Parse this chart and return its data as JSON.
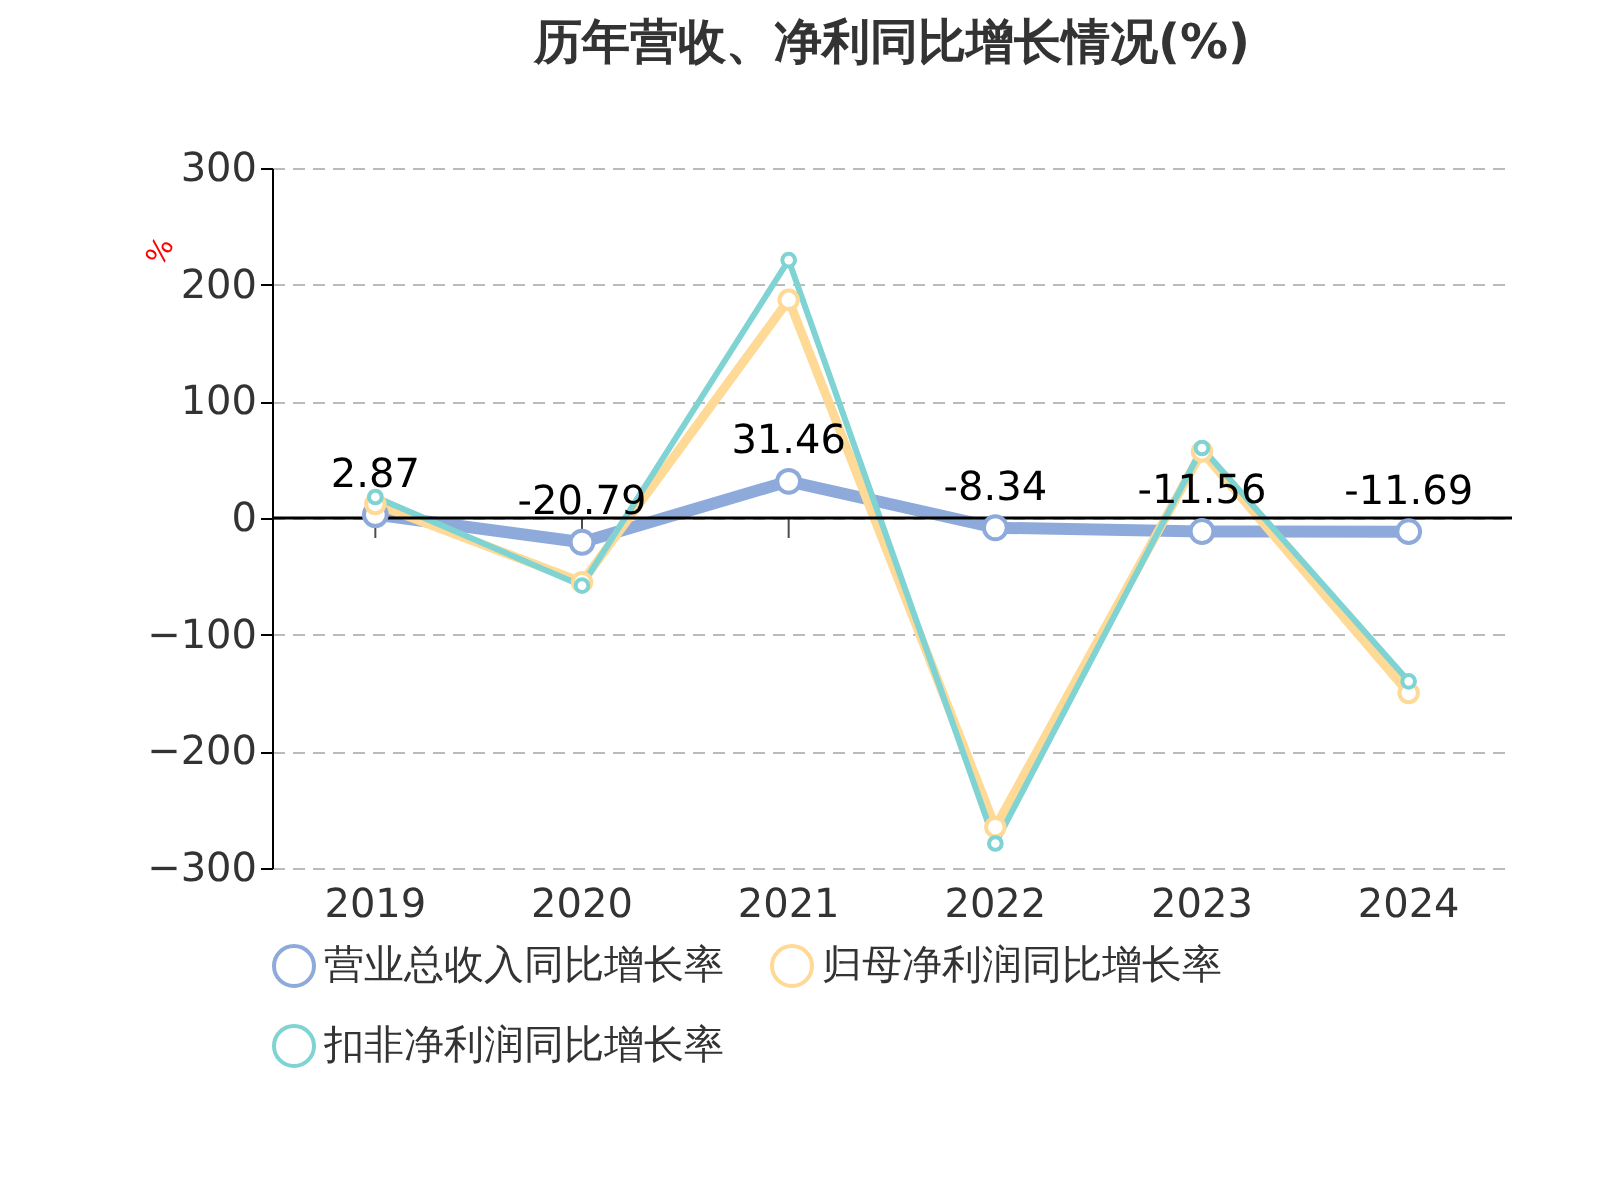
{
  "chart_data": {
    "type": "line",
    "title": "历年营收、净利同比增长情况(%)",
    "ylabel": "%",
    "categories": [
      "2019",
      "2020",
      "2021",
      "2022",
      "2023",
      "2024"
    ],
    "series": [
      {
        "name": "营业总收入同比增长率",
        "color": "#8eaadb",
        "values": [
          2.87,
          -20.79,
          31.46,
          -8.34,
          -11.56,
          -11.69
        ],
        "value_labels": [
          "2.87",
          "-20.79",
          "31.46",
          "-8.34",
          "-11.56",
          "-11.69"
        ]
      },
      {
        "name": "归母净利润同比增长率",
        "color": "#ffd996",
        "values": [
          12,
          -55,
          187,
          -265,
          57,
          -150
        ]
      },
      {
        "name": "扣非净利润同比增长率",
        "color": "#7fd3d3",
        "values": [
          18,
          -58,
          221,
          -279,
          60,
          -140
        ]
      }
    ],
    "ylim": [
      -300,
      300
    ],
    "yticks": [
      -300,
      -200,
      -100,
      0,
      100,
      200,
      300
    ],
    "grid": "y",
    "legend": "bottom",
    "marker": "circle",
    "line_style": "solid"
  }
}
